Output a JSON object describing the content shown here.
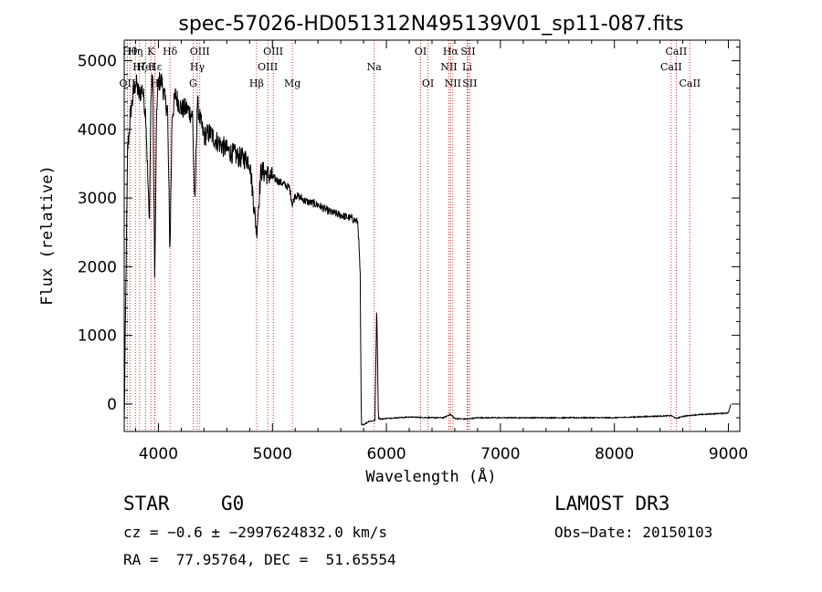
{
  "chart_data": {
    "type": "line",
    "title": "spec-57026-HD051312N495139V01_sp11-087.fits",
    "xlabel": "Wavelength (Å)",
    "ylabel": "Flux (relative)",
    "xlim": [
      3700,
      9100
    ],
    "ylim": [
      -400,
      5300
    ],
    "xticks": [
      4000,
      5000,
      6000,
      7000,
      8000,
      9000
    ],
    "yticks": [
      0,
      1000,
      2000,
      3000,
      4000,
      5000
    ],
    "series": [
      {
        "name": "flux",
        "x": [
          3700,
          3730,
          3760,
          3800,
          3830,
          3860,
          3890,
          3920,
          3935,
          3950,
          3968,
          3985,
          4000,
          4030,
          4060,
          4080,
          4101,
          4120,
          4150,
          4200,
          4250,
          4300,
          4320,
          4340,
          4370,
          4400,
          4450,
          4500,
          4600,
          4700,
          4800,
          4861,
          4900,
          5000,
          5100,
          5150,
          5175,
          5200,
          5300,
          5400,
          5500,
          5600,
          5700,
          5750,
          5770,
          5780,
          5800,
          5850,
          5880,
          5900,
          5915,
          5930,
          5950,
          6000,
          6100,
          6200,
          6300,
          6400,
          6500,
          6563,
          6600,
          6700,
          6800,
          7000,
          7500,
          8000,
          8500,
          8540,
          8600,
          8700,
          8900,
          9000,
          9020
        ],
        "y": [
          -300,
          3700,
          4300,
          4700,
          4500,
          4600,
          4200,
          2600,
          4500,
          4800,
          1700,
          4300,
          4700,
          4700,
          4400,
          4300,
          2200,
          4200,
          4500,
          4300,
          4300,
          4200,
          2800,
          4400,
          4100,
          3900,
          3950,
          3850,
          3700,
          3600,
          3550,
          2500,
          3400,
          3300,
          3200,
          3150,
          2900,
          3050,
          2950,
          2900,
          2800,
          2750,
          2700,
          2650,
          1900,
          -300,
          -300,
          -250,
          -250,
          -230,
          1450,
          -200,
          -220,
          -210,
          -200,
          -190,
          -195,
          -200,
          -200,
          -150,
          -210,
          -220,
          -200,
          -200,
          -200,
          -200,
          -170,
          -210,
          -180,
          -160,
          -140,
          -130,
          0
        ]
      }
    ],
    "lines": [
      {
        "wave": 3727,
        "label": "OII",
        "row": 3
      },
      {
        "wave": 3750,
        "label": "Hθ",
        "row": 1
      },
      {
        "wave": 3798,
        "label": "Hη",
        "row": 1
      },
      {
        "wave": 3835,
        "label": "Hζ",
        "row": 2
      },
      {
        "wave": 3889,
        "label": "HeI",
        "row": 2
      },
      {
        "wave": 3934,
        "label": "K",
        "row": 1
      },
      {
        "wave": 3968,
        "label": "H",
        "row": 3
      },
      {
        "wave": 3970,
        "label": "Hε",
        "row": 2
      },
      {
        "wave": 4102,
        "label": "Hδ",
        "row": 1
      },
      {
        "wave": 4304,
        "label": "G",
        "row": 3
      },
      {
        "wave": 4341,
        "label": "Hγ",
        "row": 2
      },
      {
        "wave": 4363,
        "label": "OIII",
        "row": 1
      },
      {
        "wave": 4861,
        "label": "Hβ",
        "row": 3
      },
      {
        "wave": 4959,
        "label": "OIII",
        "row": 2
      },
      {
        "wave": 5007,
        "label": "OIII",
        "row": 1
      },
      {
        "wave": 5175,
        "label": "Mg",
        "row": 3
      },
      {
        "wave": 5893,
        "label": "Na",
        "row": 2
      },
      {
        "wave": 6300,
        "label": "OI",
        "row": 1
      },
      {
        "wave": 6364,
        "label": "OI",
        "row": 3
      },
      {
        "wave": 6548,
        "label": "NII",
        "row": 2
      },
      {
        "wave": 6563,
        "label": "Hα",
        "row": 1
      },
      {
        "wave": 6583,
        "label": "NII",
        "row": 3
      },
      {
        "wave": 6708,
        "label": "Li",
        "row": 2
      },
      {
        "wave": 6716,
        "label": "SII",
        "row": 1
      },
      {
        "wave": 6731,
        "label": "SII",
        "row": 3
      },
      {
        "wave": 8498,
        "label": "CaII",
        "row": 2
      },
      {
        "wave": 8542,
        "label": "CaII",
        "row": 1
      },
      {
        "wave": 8662,
        "label": "CaII",
        "row": 3
      }
    ]
  },
  "info": {
    "class": "STAR",
    "subclass": "G0",
    "survey": "LAMOST DR3",
    "cz": "cz = −0.6 ± −2997624832.0 km/s",
    "obs_date": "Obs−Date: 20150103",
    "coords": "RA =  77.95764, DEC =  51.65554"
  },
  "colors": {
    "axis": "#000000",
    "line_marker": "#cc0000"
  }
}
